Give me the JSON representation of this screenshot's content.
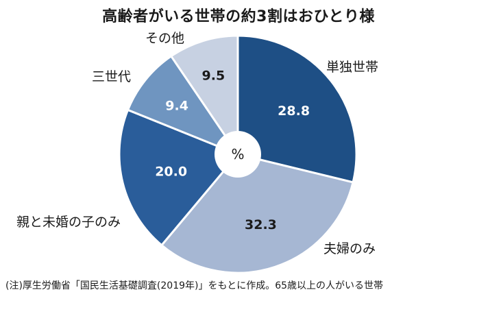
{
  "title": "高齢者がいる世帯の約3割はおひとり様",
  "center_label": "%",
  "note": "(注)厚生労働省「国民生活基礎調査(2019年)」をもとに作成。65歳以上の人がいる世帯",
  "chart_data": {
    "type": "pie",
    "title": "高齢者がいる世帯の約3割はおひとり様",
    "unit": "%",
    "donut": true,
    "start": "12 o'clock, clockwise",
    "labels": [
      "単独世帯",
      "夫婦のみ",
      "親と未婚の子のみ",
      "三世代",
      "その他"
    ],
    "values": [
      28.8,
      32.3,
      20.0,
      9.4,
      9.5
    ],
    "value_labels": [
      "28.8",
      "32.3",
      "20.0",
      "9.4",
      "9.5"
    ],
    "colors": [
      "#1e4f85",
      "#a6b7d3",
      "#2a5d9a",
      "#6f95c0",
      "#c7d1e2"
    ],
    "value_text_colors": [
      "#ffffff",
      "#1a1a1a",
      "#ffffff",
      "#ffffff",
      "#1a1a1a"
    ],
    "outline_color": "#ffffff"
  }
}
